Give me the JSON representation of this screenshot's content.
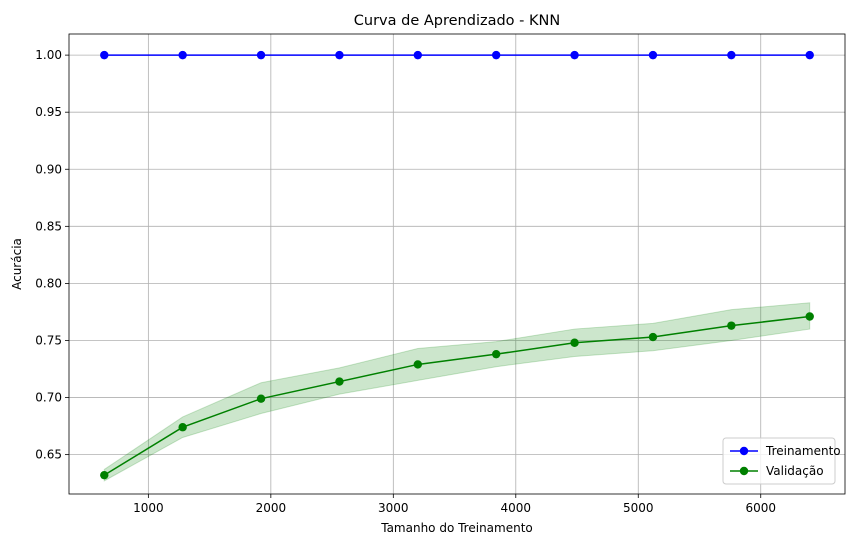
{
  "chart_data": {
    "type": "line",
    "title": "Curva de Aprendizado - KNN",
    "xlabel": "Tamanho do Treinamento",
    "ylabel": "Acurácia",
    "xlim": [
      352,
      6688
    ],
    "ylim": [
      0.6155,
      1.0185
    ],
    "xticks": [
      1000,
      2000,
      3000,
      4000,
      5000,
      6000
    ],
    "xtick_labels": [
      "1000",
      "2000",
      "3000",
      "4000",
      "5000",
      "6000"
    ],
    "yticks": [
      0.65,
      0.7,
      0.75,
      0.8,
      0.85,
      0.9,
      0.95,
      1.0
    ],
    "ytick_labels": [
      "0.65",
      "0.70",
      "0.75",
      "0.80",
      "0.85",
      "0.90",
      "0.95",
      "1.00"
    ],
    "grid": true,
    "legend_position": "bottom-right",
    "x": [
      640,
      1280,
      1920,
      2560,
      3200,
      3840,
      4480,
      5120,
      5760,
      6400
    ],
    "series": [
      {
        "name": "Treinamento",
        "color": "#0000ff",
        "marker": "circle",
        "values": [
          1.0,
          1.0,
          1.0,
          1.0,
          1.0,
          1.0,
          1.0,
          1.0,
          1.0,
          1.0
        ]
      },
      {
        "name": "Validação",
        "color": "#008000",
        "marker": "circle",
        "values": [
          0.632,
          0.674,
          0.699,
          0.714,
          0.729,
          0.738,
          0.748,
          0.753,
          0.763,
          0.771
        ],
        "band_upper": [
          0.637,
          0.683,
          0.713,
          0.726,
          0.743,
          0.749,
          0.76,
          0.765,
          0.777,
          0.783
        ],
        "band_lower": [
          0.627,
          0.665,
          0.686,
          0.703,
          0.715,
          0.727,
          0.736,
          0.741,
          0.75,
          0.76
        ],
        "band_color": "#008000"
      }
    ]
  }
}
